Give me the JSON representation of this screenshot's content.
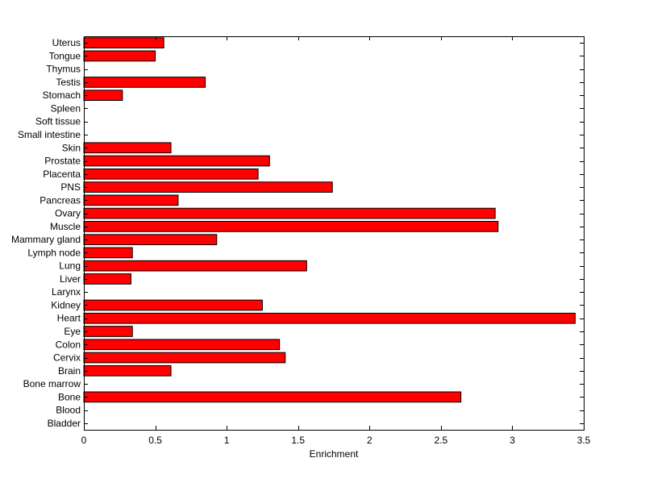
{
  "chart_data": {
    "type": "bar",
    "orientation": "horizontal",
    "xlabel": "Enrichment",
    "ylabel": "",
    "xlim": [
      0,
      3.5
    ],
    "xticks": [
      "0",
      "0.5",
      "1",
      "1.5",
      "2",
      "2.5",
      "3",
      "3.5"
    ],
    "grid": false,
    "bar_color": "#ff0000",
    "categories": [
      "Bladder",
      "Blood",
      "Bone",
      "Bone marrow",
      "Brain",
      "Cervix",
      "Colon",
      "Eye",
      "Heart",
      "Kidney",
      "Larynx",
      "Liver",
      "Lung",
      "Lymph node",
      "Mammary gland",
      "Muscle",
      "Ovary",
      "Pancreas",
      "PNS",
      "Placenta",
      "Prostate",
      "Skin",
      "Small intestine",
      "Soft tissue",
      "Spleen",
      "Stomach",
      "Testis",
      "Thymus",
      "Tongue",
      "Uterus"
    ],
    "values": [
      0,
      0,
      2.64,
      0,
      0.61,
      1.41,
      1.37,
      0.34,
      3.44,
      1.25,
      0,
      0.33,
      1.56,
      0.34,
      0.93,
      2.9,
      2.88,
      0.66,
      1.74,
      1.22,
      1.3,
      0.61,
      0,
      0,
      0,
      0.27,
      0.85,
      0,
      0.5,
      0.56
    ]
  }
}
